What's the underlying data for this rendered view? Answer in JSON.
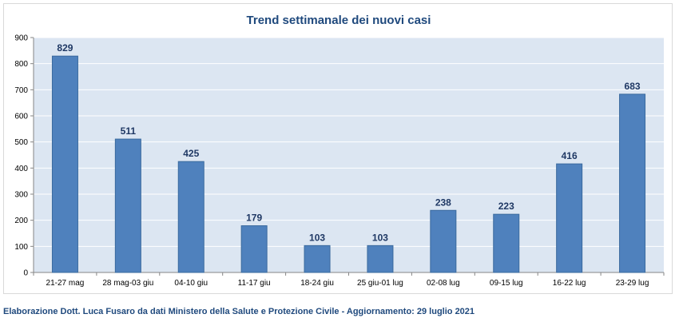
{
  "chart_data": {
    "type": "bar",
    "title": "Trend settimanale dei nuovi casi",
    "categories": [
      "21-27 mag",
      "28 mag-03 giu",
      "04-10 giu",
      "11-17 giu",
      "18-24 giu",
      "25 giu-01 lug",
      "02-08 lug",
      "09-15 lug",
      "16-22 lug",
      "23-29 lug"
    ],
    "values": [
      829,
      511,
      425,
      179,
      103,
      103,
      238,
      223,
      416,
      683
    ],
    "data_labels": [
      "829",
      "511",
      "425",
      "179",
      "103",
      "103",
      "238",
      "223",
      "416",
      "683"
    ],
    "yticks": [
      "0",
      "100",
      "200",
      "300",
      "400",
      "500",
      "600",
      "700",
      "800",
      "900"
    ],
    "ylim": [
      0,
      900
    ],
    "grid": true,
    "legend": "none",
    "colors": {
      "bar": "#4f81bd",
      "bar_border": "#3a6a9e",
      "plot_bg": "#dce6f2",
      "grid": "#ffffff",
      "label": "#1f3864"
    }
  },
  "footer": "Elaborazione Dott. Luca Fusaro da dati Ministero della Salute e Protezione Civile - Aggiornamento: 29 luglio 2021"
}
